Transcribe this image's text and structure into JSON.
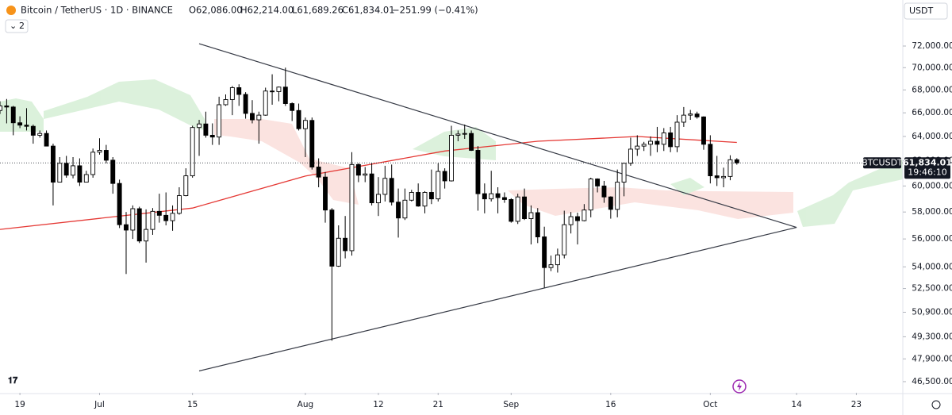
{
  "chart_data": {
    "type": "candlestick",
    "header": {
      "symbol": "Bitcoin / TetherUS · 1D · BINANCE",
      "open": "O62,086.00",
      "high": "H62,214.00",
      "low": "L61,689.26",
      "close": "C61,834.01",
      "change": "−251.99 (−0.41%)"
    },
    "ui": {
      "currency": "USDT",
      "indicators": "2"
    },
    "price_label": {
      "symbol": "BTCUSDT",
      "price": "61,834.01",
      "countdown": "19:46:10"
    },
    "log_scale": true,
    "up_color": "#ffffff",
    "down_color": "#000000",
    "edge_color": "#000000",
    "xlim": [
      "06-16",
      "10-30"
    ],
    "ylim": [
      45830,
      76450
    ],
    "yticks": [
      {
        "value": 72000,
        "label": "72,000.00"
      },
      {
        "value": 70000,
        "label": "70,000.00"
      },
      {
        "value": 68000,
        "label": "68,000.00"
      },
      {
        "value": 66000,
        "label": "66,000.00"
      },
      {
        "value": 64000,
        "label": "64,000.00"
      },
      {
        "value": 62000,
        "label": "62,000.00"
      },
      {
        "value": 60000,
        "label": "60,000.00"
      },
      {
        "value": 58000,
        "label": "58,000.00"
      },
      {
        "value": 56000,
        "label": "56,000.00"
      },
      {
        "value": 54000,
        "label": "54,000.00"
      },
      {
        "value": 52500,
        "label": "52,500.00"
      },
      {
        "value": 50900,
        "label": "50,900.00"
      },
      {
        "value": 49300,
        "label": "49,300.00"
      },
      {
        "value": 47900,
        "label": "47,900.00"
      },
      {
        "value": 46500,
        "label": "46,500.00"
      }
    ],
    "xticks": [
      {
        "value": "06-19",
        "label": "19"
      },
      {
        "value": "07-01",
        "label": "Jul"
      },
      {
        "value": "07-15",
        "label": "15"
      },
      {
        "value": "08-01",
        "label": "Aug"
      },
      {
        "value": "08-12",
        "label": "12"
      },
      {
        "value": "08-21",
        "label": "21"
      },
      {
        "value": "09-01",
        "label": "Sep"
      },
      {
        "value": "09-16",
        "label": "16"
      },
      {
        "value": "10-01",
        "label": "Oct"
      },
      {
        "value": "10-14",
        "label": "14"
      },
      {
        "value": "10-23",
        "label": "23"
      }
    ],
    "x": [
      "06-16",
      "06-17",
      "06-18",
      "06-19",
      "06-20",
      "06-21",
      "06-22",
      "06-23",
      "06-24",
      "06-25",
      "06-26",
      "06-27",
      "06-28",
      "06-29",
      "06-30",
      "07-01",
      "07-02",
      "07-03",
      "07-04",
      "07-05",
      "07-06",
      "07-07",
      "07-08",
      "07-09",
      "07-10",
      "07-11",
      "07-12",
      "07-13",
      "07-14",
      "07-15",
      "07-16",
      "07-17",
      "07-18",
      "07-19",
      "07-20",
      "07-21",
      "07-22",
      "07-23",
      "07-24",
      "07-25",
      "07-26",
      "07-27",
      "07-28",
      "07-29",
      "07-30",
      "07-31",
      "08-01",
      "08-02",
      "08-03",
      "08-04",
      "08-05",
      "08-06",
      "08-07",
      "08-08",
      "08-09",
      "08-10",
      "08-11",
      "08-12",
      "08-13",
      "08-14",
      "08-15",
      "08-16",
      "08-17",
      "08-18",
      "08-19",
      "08-20",
      "08-21",
      "08-22",
      "08-23",
      "08-24",
      "08-25",
      "08-26",
      "08-27",
      "08-28",
      "08-29",
      "08-30",
      "08-31",
      "09-01",
      "09-02",
      "09-03",
      "09-04",
      "09-05",
      "09-06",
      "09-07",
      "09-08",
      "09-09",
      "09-10",
      "09-11",
      "09-12",
      "09-13",
      "09-14",
      "09-15",
      "09-16",
      "09-17",
      "09-18",
      "09-19",
      "09-20",
      "09-21",
      "09-22",
      "09-23",
      "09-24",
      "09-25",
      "09-26",
      "09-27",
      "09-28",
      "09-29",
      "09-30",
      "10-01",
      "10-02",
      "10-03",
      "10-04",
      "10-05"
    ],
    "open": [
      66200,
      66600,
      66500,
      65150,
      64950,
      64850,
      64100,
      64250,
      63200,
      60300,
      61800,
      60850,
      61600,
      60300,
      60900,
      62700,
      62850,
      62050,
      60200,
      57050,
      56650,
      58250,
      55850,
      56700,
      58050,
      57750,
      57350,
      57900,
      59250,
      60800,
      64750,
      65050,
      64100,
      63950,
      66700,
      67150,
      68200,
      67600,
      65950,
      65400,
      65800,
      67900,
      67850,
      68250,
      66800,
      66200,
      64650,
      65350,
      61500,
      60700,
      58150,
      54050,
      56050,
      55150,
      61700,
      60850,
      60950,
      58700,
      59350,
      60600,
      58750,
      57550,
      58900,
      59500,
      58450,
      59500,
      59000,
      61150,
      60400,
      64100,
      64200,
      64250,
      62850,
      59400,
      59000,
      59400,
      59100,
      58950,
      57300,
      59150,
      57500,
      57950,
      56150,
      53950,
      54150,
      54850,
      57050,
      57650,
      57350,
      58150,
      60550,
      60000,
      59150,
      58200,
      60300,
      61800,
      62950,
      63200,
      63350,
      63600,
      63350,
      64300,
      63150,
      65200,
      65800,
      65900,
      65650,
      63350,
      60800,
      60650,
      60750,
      62086
    ],
    "high": [
      67000,
      67200,
      66600,
      65700,
      66400,
      65000,
      64500,
      64500,
      63400,
      62300,
      62400,
      62300,
      62200,
      61200,
      63000,
      63850,
      63300,
      62300,
      60500,
      58000,
      58500,
      58400,
      58200,
      58300,
      59400,
      59500,
      58500,
      59900,
      61400,
      64900,
      65400,
      66100,
      65100,
      67400,
      67600,
      68350,
      68500,
      67800,
      67100,
      66100,
      68200,
      69400,
      68300,
      70000,
      66900,
      66800,
      65600,
      65600,
      62200,
      61100,
      58300,
      57000,
      57700,
      62700,
      61800,
      61500,
      61800,
      60700,
      61600,
      61700,
      59800,
      59800,
      59700,
      60200,
      59600,
      61300,
      61800,
      61400,
      64900,
      64500,
      65000,
      64500,
      63200,
      60200,
      61200,
      59900,
      59500,
      59050,
      59400,
      59800,
      58500,
      58300,
      56900,
      54800,
      55300,
      58100,
      58000,
      57950,
      58600,
      60650,
      60600,
      60400,
      59200,
      61300,
      61800,
      63900,
      64100,
      63550,
      64000,
      64800,
      64700,
      64800,
      65800,
      66500,
      66250,
      66100,
      65700,
      64100,
      62400,
      61450,
      62450,
      62214
    ],
    "low": [
      65900,
      65100,
      64100,
      64700,
      64500,
      63400,
      63900,
      63200,
      58500,
      60300,
      60650,
      60600,
      60000,
      60300,
      60650,
      62500,
      61800,
      59400,
      56800,
      53500,
      56000,
      55700,
      54300,
      56300,
      57200,
      57000,
      56600,
      57800,
      59200,
      60650,
      62400,
      63900,
      63300,
      63300,
      66600,
      65800,
      66600,
      65500,
      65100,
      63400,
      65750,
      66700,
      67000,
      66600,
      65300,
      64500,
      62300,
      61300,
      59900,
      57200,
      49050,
      54000,
      54600,
      54800,
      60300,
      60300,
      58500,
      57700,
      58800,
      58500,
      56100,
      57400,
      58800,
      58400,
      57900,
      58600,
      58800,
      59800,
      60350,
      63600,
      63800,
      62800,
      58100,
      57900,
      58800,
      57900,
      58700,
      57200,
      57100,
      57400,
      55600,
      55700,
      52550,
      53700,
      53600,
      54600,
      56400,
      55600,
      57300,
      57600,
      59500,
      58700,
      57500,
      57600,
      59200,
      61600,
      62400,
      62800,
      62400,
      62700,
      62800,
      62700,
      62700,
      64800,
      65400,
      65500,
      62900,
      60200,
      60000,
      59900,
      60450,
      61689
    ],
    "close": [
      66600,
      66500,
      65150,
      64950,
      64850,
      64100,
      64250,
      63200,
      60300,
      61800,
      60850,
      61600,
      60300,
      60900,
      62700,
      62850,
      62050,
      60200,
      57050,
      56650,
      58250,
      55850,
      56700,
      58050,
      57750,
      57350,
      57900,
      59250,
      60800,
      64750,
      65050,
      64100,
      63950,
      66700,
      67150,
      68200,
      67600,
      65950,
      65400,
      65800,
      67900,
      67850,
      68250,
      66800,
      66200,
      64650,
      65350,
      61500,
      60700,
      58150,
      54050,
      56050,
      55150,
      61700,
      60850,
      60950,
      58700,
      59350,
      60600,
      58750,
      57550,
      58900,
      59500,
      58450,
      59500,
      59000,
      61150,
      60400,
      64100,
      64200,
      64250,
      62850,
      59400,
      59000,
      59400,
      59100,
      58950,
      57300,
      59150,
      57500,
      57950,
      56150,
      53950,
      54150,
      54850,
      57050,
      57650,
      57350,
      58150,
      60550,
      60000,
      59150,
      58200,
      60300,
      61800,
      62950,
      63200,
      63350,
      63600,
      63350,
      64300,
      63150,
      65200,
      65800,
      65900,
      65650,
      63350,
      60800,
      60650,
      60750,
      62086,
      61834
    ],
    "ma": {
      "color": "#e53935",
      "x": [
        "06-16",
        "07-15",
        "08-01",
        "08-22",
        "09-05",
        "09-20",
        "10-05"
      ],
      "values": [
        56700,
        58300,
        60780,
        62800,
        63600,
        64000,
        63500
      ]
    },
    "trendlines": [
      {
        "color": "#363a45",
        "x": [
          "07-16",
          "10-14"
        ],
        "values": [
          72220,
          56850
        ]
      },
      {
        "color": "#363a45",
        "x": [
          "07-16",
          "10-14"
        ],
        "values": [
          47150,
          56850
        ]
      }
    ]
  }
}
